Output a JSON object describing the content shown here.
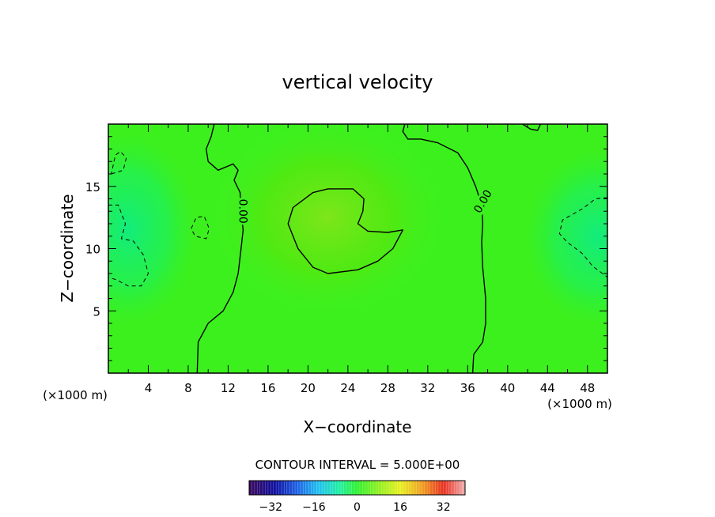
{
  "chart_data": {
    "type": "heatmap",
    "title": "vertical velocity",
    "xlabel": "X−coordinate",
    "ylabel": "Z−coordinate",
    "x_unit_left": "(×1000 m)",
    "x_unit_right": "(×1000 m)",
    "xlim": [
      0,
      50
    ],
    "ylim": [
      0,
      20
    ],
    "x_ticks": [
      4,
      8,
      12,
      16,
      20,
      24,
      28,
      32,
      36,
      40,
      44,
      48
    ],
    "y_ticks": [
      5,
      10,
      15
    ],
    "contour_interval_text": "CONTOUR INTERVAL =  5.000E+00",
    "contour_labels": [
      {
        "text": "0.00",
        "x": 13.5,
        "z": 13.0,
        "angle": 90
      },
      {
        "text": "0.00",
        "x": 37.5,
        "z": 13.8,
        "angle": -60
      }
    ],
    "colorbar": {
      "range": [
        -40,
        40
      ],
      "ticks": [
        -32,
        -16,
        0,
        16,
        32
      ],
      "tick_labels": [
        "−32",
        "−16",
        "0",
        "16",
        "32"
      ]
    },
    "field_summary": {
      "background_value": 2,
      "max_center": {
        "x": 22,
        "z": 12,
        "value": 7
      },
      "min_regions": [
        {
          "x": 2,
          "z": 11,
          "value": -4
        },
        {
          "x": 48,
          "z": 11,
          "value": -5
        }
      ]
    },
    "contours": {
      "zero_left": [
        [
          8.9,
          0
        ],
        [
          9,
          2.5
        ],
        [
          10,
          4
        ],
        [
          11.5,
          5
        ],
        [
          12.5,
          6.5
        ],
        [
          13,
          8
        ],
        [
          13.3,
          10
        ],
        [
          13.5,
          11.5
        ],
        [
          13.3,
          13
        ],
        [
          13.2,
          14.5
        ],
        [
          12.6,
          15.5
        ],
        [
          13,
          16.3
        ],
        [
          12.5,
          16.8
        ],
        [
          11,
          16.3
        ],
        [
          10,
          17
        ],
        [
          9.8,
          18
        ],
        [
          10.3,
          19
        ],
        [
          10.6,
          20
        ]
      ],
      "zero_right": [
        [
          36.5,
          0
        ],
        [
          36.6,
          1.5
        ],
        [
          37.5,
          2.5
        ],
        [
          37.8,
          4
        ],
        [
          37.8,
          6
        ],
        [
          37.5,
          8.5
        ],
        [
          37.4,
          10.5
        ],
        [
          37.5,
          12
        ],
        [
          37.4,
          13.5
        ],
        [
          36.8,
          15
        ],
        [
          36,
          16.5
        ],
        [
          35,
          17.7
        ],
        [
          33,
          18.5
        ],
        [
          31.3,
          18.8
        ],
        [
          30,
          18.8
        ],
        [
          29.5,
          19.4
        ],
        [
          29.7,
          20
        ]
      ],
      "zero_top": [
        [
          41.5,
          20
        ],
        [
          42.3,
          19.6
        ],
        [
          43,
          19.5
        ],
        [
          43.3,
          20
        ]
      ],
      "pos_5_center": [
        [
          19,
          10
        ],
        [
          20.5,
          8.5
        ],
        [
          22,
          8
        ],
        [
          25,
          8.3
        ],
        [
          27,
          9
        ],
        [
          28.5,
          10
        ],
        [
          29.5,
          11.5
        ],
        [
          28,
          11.3
        ],
        [
          26,
          11.4
        ],
        [
          25,
          12
        ],
        [
          25.5,
          13
        ],
        [
          25.6,
          14
        ],
        [
          24.5,
          14.8
        ],
        [
          22,
          14.8
        ],
        [
          20.5,
          14.5
        ],
        [
          18.5,
          13.3
        ],
        [
          18,
          12
        ],
        [
          18.5,
          11
        ],
        [
          19,
          10
        ]
      ],
      "neg_left_low": [
        [
          0,
          13.5
        ],
        [
          1,
          13.5
        ],
        [
          1.7,
          12
        ],
        [
          1.3,
          10.8
        ],
        [
          2.5,
          10.6
        ],
        [
          3.5,
          9.5
        ],
        [
          4,
          8
        ],
        [
          3.3,
          7
        ],
        [
          2,
          7
        ],
        [
          0.8,
          7.5
        ],
        [
          0,
          7.7
        ]
      ],
      "neg_left_top": [
        [
          0.3,
          16
        ],
        [
          1.5,
          16.3
        ],
        [
          1.8,
          17.3
        ],
        [
          1.2,
          17.8
        ],
        [
          0.7,
          17.5
        ],
        [
          0.3,
          16
        ]
      ],
      "neg_left_mid": [
        [
          8.3,
          11.6
        ],
        [
          8.8,
          12.5
        ],
        [
          9.6,
          12.6
        ],
        [
          10.1,
          11.6
        ],
        [
          9.8,
          10.8
        ],
        [
          8.7,
          11
        ],
        [
          8.3,
          11.6
        ]
      ],
      "neg_right": [
        [
          50,
          14.1
        ],
        [
          48.8,
          14
        ],
        [
          47.5,
          13.2
        ],
        [
          45.5,
          12.3
        ],
        [
          45.2,
          11.2
        ],
        [
          46,
          10.5
        ],
        [
          47.5,
          9.6
        ],
        [
          48.5,
          8.6
        ],
        [
          50,
          7.7
        ]
      ]
    }
  }
}
